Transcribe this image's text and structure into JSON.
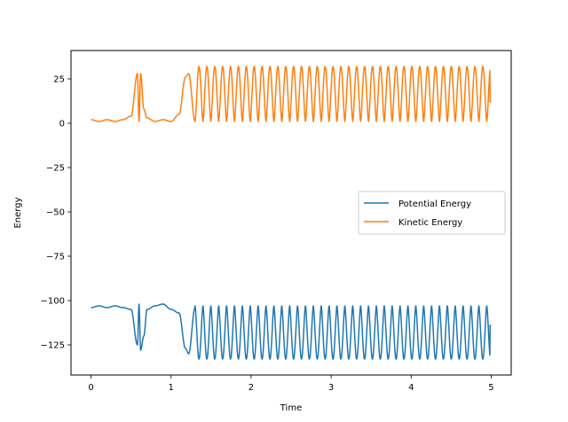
{
  "chart_data": {
    "type": "line",
    "title": "",
    "xlabel": "Time",
    "ylabel": "Energy",
    "xlim": [
      -0.25,
      5.25
    ],
    "ylim": [
      -142,
      41
    ],
    "grid": false,
    "legend_placement": "center-right",
    "xticks": [
      0,
      1,
      2,
      3,
      4,
      5
    ],
    "xtick_labels": [
      "0",
      "1",
      "2",
      "3",
      "4",
      "5"
    ],
    "yticks": [
      25,
      0,
      -25,
      -50,
      -75,
      -100,
      -125
    ],
    "ytick_labels": [
      "25",
      "0",
      "−25",
      "−50",
      "−75",
      "−100",
      "−125"
    ],
    "series": [
      {
        "name": "Potential Energy",
        "color": "#1f77b4",
        "x": [
          0.0,
          0.1,
          0.2,
          0.3,
          0.4,
          0.5,
          0.58,
          0.6,
          0.62,
          0.66,
          0.7,
          0.8,
          0.9,
          1.0,
          1.1,
          1.18,
          1.22,
          1.3,
          1.4,
          1.5,
          2.0,
          3.0,
          4.0,
          5.0
        ],
        "values": [
          -104,
          -103,
          -104,
          -103,
          -104,
          -105,
          -125,
          -102,
          -128,
          -120,
          -105,
          -103,
          -102,
          -105,
          -107,
          -127,
          -130,
          -104,
          -133,
          -104,
          -133,
          -104,
          -133,
          -114
        ],
        "envelope_after_1_3": {
          "min": -133,
          "max": -103
        }
      },
      {
        "name": "Kinetic Energy",
        "color": "#ff7f0e",
        "x": [
          0.0,
          0.1,
          0.2,
          0.3,
          0.4,
          0.5,
          0.58,
          0.6,
          0.62,
          0.66,
          0.7,
          0.8,
          0.9,
          1.0,
          1.1,
          1.18,
          1.22,
          1.3,
          1.4,
          1.5,
          2.0,
          3.0,
          4.0,
          5.0
        ],
        "values": [
          2,
          1,
          2,
          1,
          2,
          4,
          28,
          1,
          28,
          8,
          3,
          1,
          2,
          1,
          5,
          26,
          28,
          1,
          32,
          1,
          32,
          1,
          32,
          12
        ],
        "envelope_after_1_3": {
          "min": 1,
          "max": 32
        }
      }
    ]
  }
}
